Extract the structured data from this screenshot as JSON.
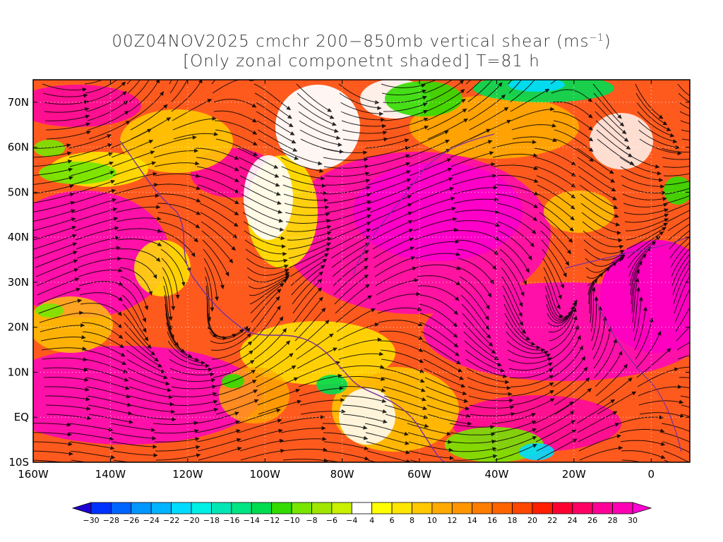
{
  "title": {
    "line1_prefix": "00Z04NOV2025 cmchr 200−850mb vertical shear (ms",
    "line1_sup": "−1",
    "line1_suffix": ")",
    "line2": "[Only zonal componetnt shaded] T=81 h"
  },
  "axes": {
    "lat_labels": [
      "70N",
      "60N",
      "50N",
      "40N",
      "30N",
      "20N",
      "10N",
      "EQ",
      "10S"
    ],
    "lat_values": [
      70,
      60,
      50,
      40,
      30,
      20,
      10,
      0,
      -10
    ],
    "lon_labels": [
      "160W",
      "140W",
      "120W",
      "100W",
      "80W",
      "60W",
      "40W",
      "20W",
      "0"
    ],
    "lon_values": [
      -160,
      -140,
      -120,
      -100,
      -80,
      -60,
      -40,
      -20,
      0
    ],
    "lon_range": [
      -160,
      10
    ],
    "lat_range": [
      -10,
      75
    ]
  },
  "colorbar": {
    "labels": [
      "−30",
      "−28",
      "−26",
      "−24",
      "−22",
      "−20",
      "−18",
      "−16",
      "−14",
      "−12",
      "−10",
      "−8",
      "−6",
      "−4",
      "4",
      "6",
      "8",
      "10",
      "12",
      "14",
      "16",
      "18",
      "20",
      "22",
      "24",
      "26",
      "28",
      "30"
    ],
    "colors": [
      "#1e00d2",
      "#0032ff",
      "#0064ff",
      "#0096ff",
      "#00b4ff",
      "#00dcff",
      "#00f0e6",
      "#00e6b4",
      "#00e682",
      "#00dc50",
      "#32dc00",
      "#78e600",
      "#a0e600",
      "#c8f000",
      "#ffffff",
      "#ffff00",
      "#ffe600",
      "#ffc800",
      "#ffaa00",
      "#ff9600",
      "#ff7d00",
      "#ff6400",
      "#ff4600",
      "#ff1e00",
      "#ff0032",
      "#ff0064",
      "#ff0096",
      "#ff00b4",
      "#ff00d2"
    ]
  }
}
